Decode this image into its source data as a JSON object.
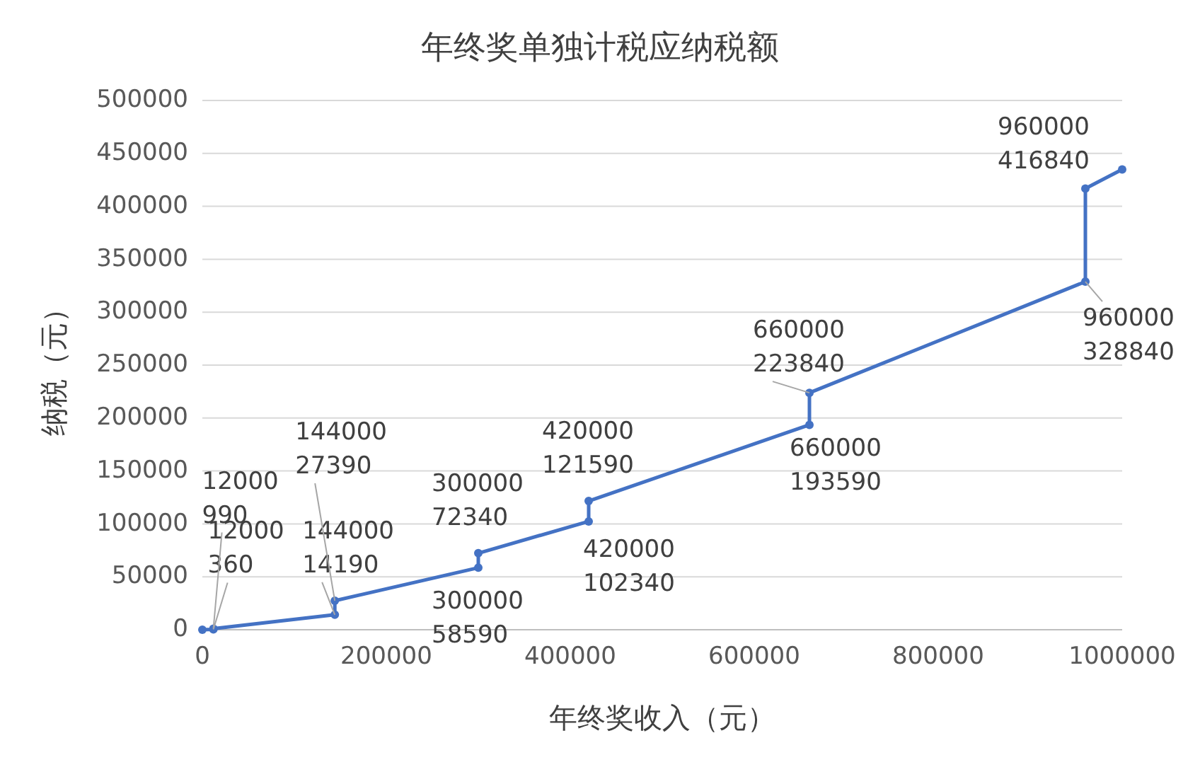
{
  "chart_data": {
    "type": "line",
    "title": "年终奖单独计税应纳税额",
    "xlabel": "年终奖收入（元）",
    "ylabel": "纳税（元）",
    "x": [
      0,
      12000,
      12000,
      144000,
      144000,
      300000,
      300000,
      420000,
      420000,
      660000,
      660000,
      960000,
      960000,
      1000000
    ],
    "series": [
      {
        "color": "#4472c4",
        "values": [
          0,
          360,
          990,
          14190,
          27390,
          58590,
          72340,
          102340,
          121590,
          193590,
          223840,
          328840,
          416840,
          434840
        ]
      }
    ],
    "annotations": [
      {
        "text": "12000\n360",
        "x": 12000,
        "y": 360
      },
      {
        "text": "12000\n990",
        "x": 12000,
        "y": 990
      },
      {
        "text": "144000\n14190",
        "x": 144000,
        "y": 14190
      },
      {
        "text": "144000\n27390",
        "x": 144000,
        "y": 27390
      },
      {
        "text": "300000\n58590",
        "x": 300000,
        "y": 58590
      },
      {
        "text": "300000\n72340",
        "x": 300000,
        "y": 72340
      },
      {
        "text": "420000\n102340",
        "x": 420000,
        "y": 102340
      },
      {
        "text": "420000\n121590",
        "x": 420000,
        "y": 121590
      },
      {
        "text": "660000\n193590",
        "x": 660000,
        "y": 193590
      },
      {
        "text": "660000\n223840",
        "x": 660000,
        "y": 223840
      },
      {
        "text": "960000\n328840",
        "x": 960000,
        "y": 328840
      },
      {
        "text": "960000\n416840",
        "x": 960000,
        "y": 416840
      }
    ],
    "xlim": [
      0,
      1000000
    ],
    "xticks": [
      0,
      200000,
      400000,
      600000,
      800000,
      1000000
    ],
    "ylim": [
      0,
      500000
    ],
    "yticks": [
      0,
      50000,
      100000,
      150000,
      200000,
      250000,
      300000,
      350000,
      400000,
      450000,
      500000
    ],
    "grid": "y",
    "marker": "circle",
    "line_style": "solid"
  }
}
